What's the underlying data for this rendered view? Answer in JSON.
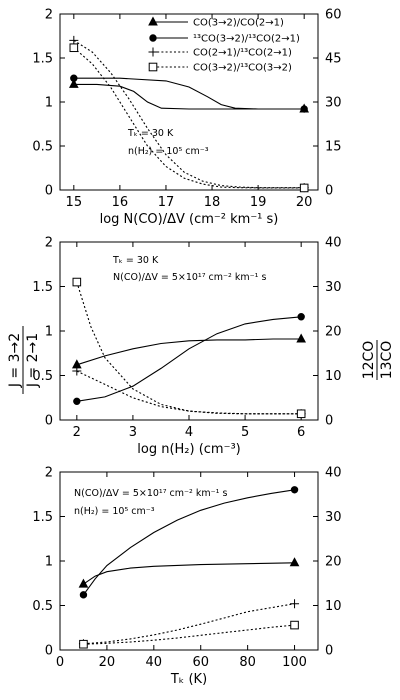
{
  "figure": {
    "left_ylabel_num": "J = 3→2",
    "left_ylabel_den": "J = 2→1",
    "right_ylabel_num": "12CO",
    "right_ylabel_den": "13CO"
  },
  "chart_data": [
    {
      "type": "line",
      "xlabel": "log N(CO)/ΔV  (cm⁻² km⁻¹ s)",
      "xlim": [
        14.7,
        20.3
      ],
      "xticks": [
        15,
        16,
        17,
        18,
        19,
        20
      ],
      "xtick_labels": [
        "15",
        "16",
        "17",
        "18",
        "19",
        "20"
      ],
      "ylim": [
        0,
        2
      ],
      "yticks": [
        0,
        0.5,
        1,
        1.5,
        2
      ],
      "ytick_labels": [
        "0",
        "0.5",
        "1",
        "1.5",
        "2"
      ],
      "y2lim": [
        0,
        60
      ],
      "y2ticks": [
        0,
        15,
        30,
        45,
        60
      ],
      "y2tick_labels": [
        "0",
        "15",
        "30",
        "45",
        "60"
      ],
      "annotations": [
        "Tₖ = 30 K",
        "n(H₂) = 10⁵ cm⁻³"
      ],
      "legend": "top-right",
      "series": [
        {
          "name": "CO(3→2)/CO(2→1)",
          "axis": "left",
          "style": "solid",
          "marker": "triangle",
          "x": [
            15,
            15.5,
            16,
            16.3,
            16.6,
            16.9,
            17.5,
            18,
            19,
            20
          ],
          "y": [
            1.2,
            1.2,
            1.18,
            1.12,
            1.0,
            0.93,
            0.92,
            0.92,
            0.92,
            0.92
          ],
          "marked_x": [
            15,
            20
          ]
        },
        {
          "name": "¹³CO(3→2)/¹³CO(2→1)",
          "axis": "left",
          "style": "solid",
          "marker": "circle",
          "x": [
            15,
            16,
            17,
            17.5,
            17.9,
            18.2,
            18.5,
            19,
            20
          ],
          "y": [
            1.27,
            1.27,
            1.24,
            1.17,
            1.06,
            0.97,
            0.93,
            0.92,
            0.92
          ],
          "marked_x": [
            15,
            20
          ]
        },
        {
          "name": "CO(2→1)/¹³CO(2→1)",
          "axis": "right",
          "style": "dotted",
          "marker": "plus",
          "x": [
            15,
            15.4,
            15.8,
            16.2,
            16.6,
            17,
            17.4,
            17.8,
            18.2,
            18.6,
            19,
            20
          ],
          "y": [
            51,
            47,
            40,
            31,
            21,
            12,
            6,
            3,
            1.5,
            1,
            0.8,
            0.8
          ],
          "marked_x": [
            15,
            20
          ]
        },
        {
          "name": "CO(3→2)/¹³CO(3→2)",
          "axis": "right",
          "style": "dotted",
          "marker": "square",
          "x": [
            15,
            15.4,
            15.8,
            16.2,
            16.6,
            17,
            17.4,
            17.8,
            18.2,
            18.6,
            19,
            20
          ],
          "y": [
            48.5,
            43,
            35,
            25,
            15,
            8,
            4,
            2,
            1,
            0.8,
            0.7,
            0.7
          ],
          "marked_x": [
            15,
            20
          ]
        }
      ]
    },
    {
      "type": "line",
      "xlabel": "log n(H₂) (cm⁻³)",
      "xlim": [
        1.7,
        6.3
      ],
      "xticks": [
        2,
        3,
        4,
        5,
        6
      ],
      "xtick_labels": [
        "2",
        "3",
        "4",
        "5",
        "6"
      ],
      "ylim": [
        0,
        2
      ],
      "yticks": [
        0,
        0.5,
        1,
        1.5,
        2
      ],
      "ytick_labels": [
        "0",
        "0.5",
        "1",
        "1.5",
        "2"
      ],
      "y2lim": [
        0,
        40
      ],
      "y2ticks": [
        0,
        10,
        20,
        30,
        40
      ],
      "y2tick_labels": [
        "0",
        "10",
        "20",
        "30",
        "40"
      ],
      "annotations": [
        "Tₖ = 30 K",
        "N(CO)/ΔV = 5×10¹⁷ cm⁻² km⁻¹ s"
      ],
      "series": [
        {
          "name": "CO(3→2)/CO(2→1)",
          "axis": "left",
          "style": "solid",
          "marker": "triangle",
          "x": [
            2,
            2.5,
            3,
            3.5,
            4,
            4.5,
            5,
            5.5,
            6
          ],
          "y": [
            0.62,
            0.72,
            0.8,
            0.86,
            0.89,
            0.9,
            0.9,
            0.91,
            0.91
          ],
          "marked_x": [
            2,
            6
          ]
        },
        {
          "name": "¹³CO(3→2)/¹³CO(2→1)",
          "axis": "left",
          "style": "solid",
          "marker": "circle",
          "x": [
            2,
            2.5,
            3,
            3.5,
            4,
            4.5,
            5,
            5.5,
            6
          ],
          "y": [
            0.21,
            0.26,
            0.38,
            0.58,
            0.8,
            0.97,
            1.08,
            1.13,
            1.16
          ],
          "marked_x": [
            2,
            6
          ]
        },
        {
          "name": "CO(2→1)/¹³CO(2→1)",
          "axis": "right",
          "style": "dotted",
          "marker": "plus",
          "x": [
            2,
            2.5,
            3,
            3.5,
            4,
            4.5,
            5,
            5.5,
            6
          ],
          "y": [
            11,
            8,
            5,
            3,
            2,
            1.6,
            1.4,
            1.4,
            1.4
          ],
          "marked_x": [
            2,
            6
          ]
        },
        {
          "name": "CO(3→2)/¹³CO(3→2)",
          "axis": "right",
          "style": "dotted",
          "marker": "square",
          "x": [
            2,
            2.25,
            2.5,
            3,
            3.5,
            4,
            4.5,
            5,
            5.5,
            6
          ],
          "y": [
            31,
            21,
            14,
            7,
            3.5,
            2,
            1.5,
            1.4,
            1.4,
            1.4
          ],
          "marked_x": [
            2,
            6
          ]
        }
      ]
    },
    {
      "type": "line",
      "xlabel": "Tₖ (K)",
      "xlim": [
        0,
        110
      ],
      "xticks": [
        0,
        20,
        40,
        60,
        80,
        100
      ],
      "xtick_labels": [
        "0",
        "20",
        "40",
        "60",
        "80",
        "100"
      ],
      "ylim": [
        0,
        2
      ],
      "yticks": [
        0,
        0.5,
        1,
        1.5,
        2
      ],
      "ytick_labels": [
        "0",
        "0.5",
        "1",
        "1.5",
        "2"
      ],
      "y2lim": [
        0,
        40
      ],
      "y2ticks": [
        0,
        10,
        20,
        30,
        40
      ],
      "y2tick_labels": [
        "0",
        "10",
        "20",
        "30",
        "40"
      ],
      "annotations": [
        "N(CO)/ΔV = 5×10¹⁷ cm⁻² km⁻¹ s",
        "n(H₂) = 10⁵ cm⁻³"
      ],
      "series": [
        {
          "name": "CO(3→2)/CO(2→1)",
          "axis": "left",
          "style": "solid",
          "marker": "triangle",
          "x": [
            10,
            15,
            20,
            30,
            40,
            60,
            80,
            100
          ],
          "y": [
            0.74,
            0.83,
            0.88,
            0.92,
            0.94,
            0.96,
            0.97,
            0.98
          ],
          "marked_x": [
            10,
            100
          ]
        },
        {
          "name": "¹³CO(3→2)/¹³CO(2→1)",
          "axis": "left",
          "style": "solid",
          "marker": "circle",
          "x": [
            10,
            15,
            20,
            30,
            40,
            50,
            60,
            70,
            80,
            90,
            100
          ],
          "y": [
            0.62,
            0.8,
            0.95,
            1.15,
            1.32,
            1.46,
            1.57,
            1.65,
            1.71,
            1.76,
            1.8
          ],
          "marked_x": [
            10,
            100
          ]
        },
        {
          "name": "CO(2→1)/¹³CO(2→1)",
          "axis": "right",
          "style": "dotted",
          "marker": "plus",
          "x": [
            10,
            20,
            30,
            40,
            50,
            60,
            70,
            80,
            90,
            100
          ],
          "y": [
            1.4,
            1.8,
            2.5,
            3.4,
            4.5,
            5.8,
            7.2,
            8.6,
            9.5,
            10.4
          ],
          "marked_x": [
            10,
            100
          ]
        },
        {
          "name": "CO(3→2)/¹³CO(3→2)",
          "axis": "right",
          "style": "dotted",
          "marker": "square",
          "x": [
            10,
            20,
            30,
            40,
            50,
            60,
            70,
            80,
            90,
            100
          ],
          "y": [
            1.3,
            1.5,
            1.8,
            2.2,
            2.7,
            3.3,
            3.9,
            4.5,
            5.1,
            5.6
          ],
          "marked_x": [
            10,
            100
          ]
        }
      ]
    }
  ]
}
